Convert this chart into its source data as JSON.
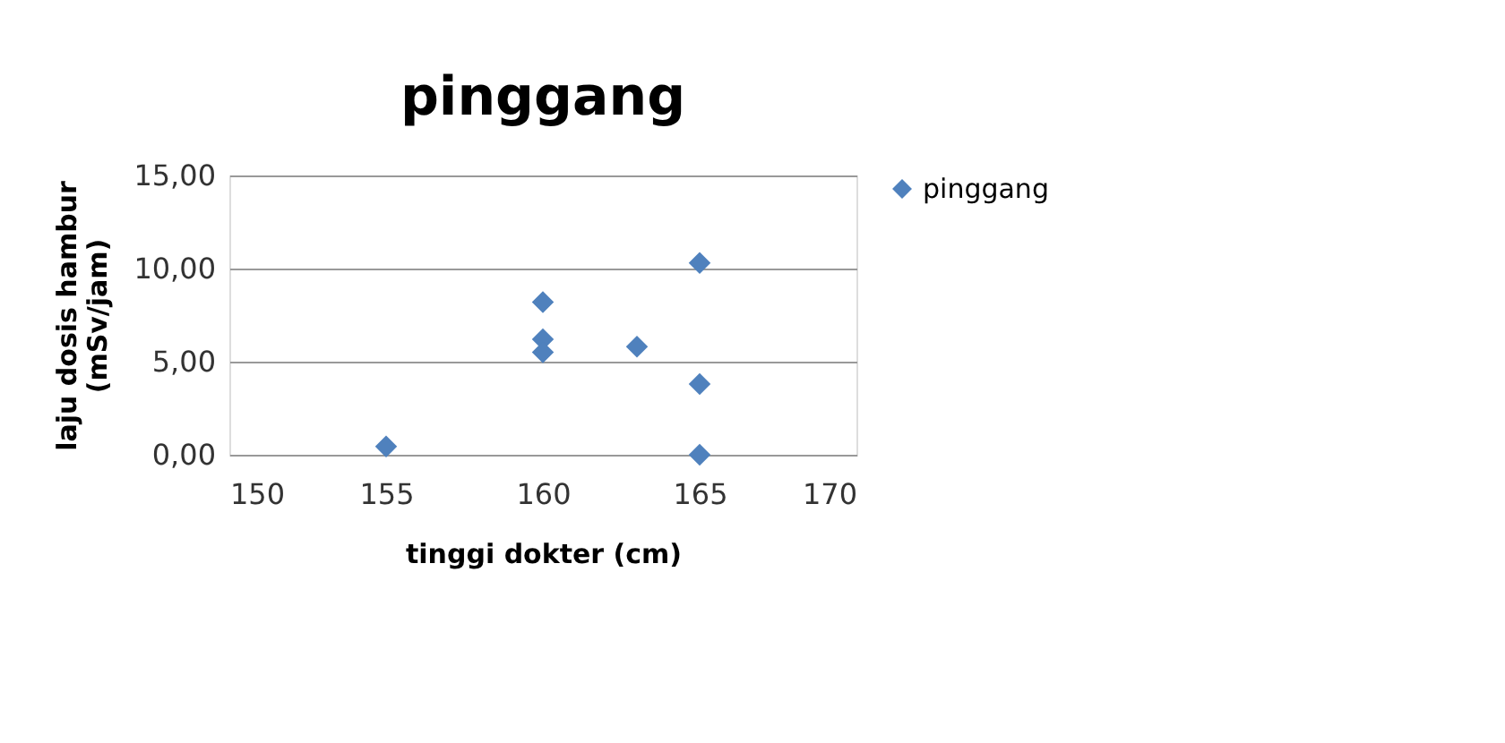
{
  "chart_data": {
    "type": "scatter",
    "title": "pinggang",
    "xlabel": "tinggi dokter (cm)",
    "ylabel": "laju dosis hambur (mSv/jam)",
    "series": [
      {
        "name": "pinggang",
        "color": "#4f81bd",
        "x": [
          155,
          160,
          160,
          160,
          163,
          165,
          165,
          165
        ],
        "values": [
          0.44,
          8.2,
          6.2,
          5.5,
          5.8,
          10.3,
          3.8,
          0.0
        ]
      }
    ],
    "xlim": [
      150,
      170
    ],
    "xticks": [
      150,
      155,
      160,
      165,
      170
    ],
    "ylim": [
      0,
      15
    ],
    "yticks": [
      {
        "value": 0,
        "label": "0,00"
      },
      {
        "value": 5,
        "label": "5,00"
      },
      {
        "value": 10,
        "label": "10,00"
      },
      {
        "value": 15,
        "label": "15,00"
      }
    ],
    "grid": "y",
    "legend": "right",
    "marker": "diamond"
  }
}
